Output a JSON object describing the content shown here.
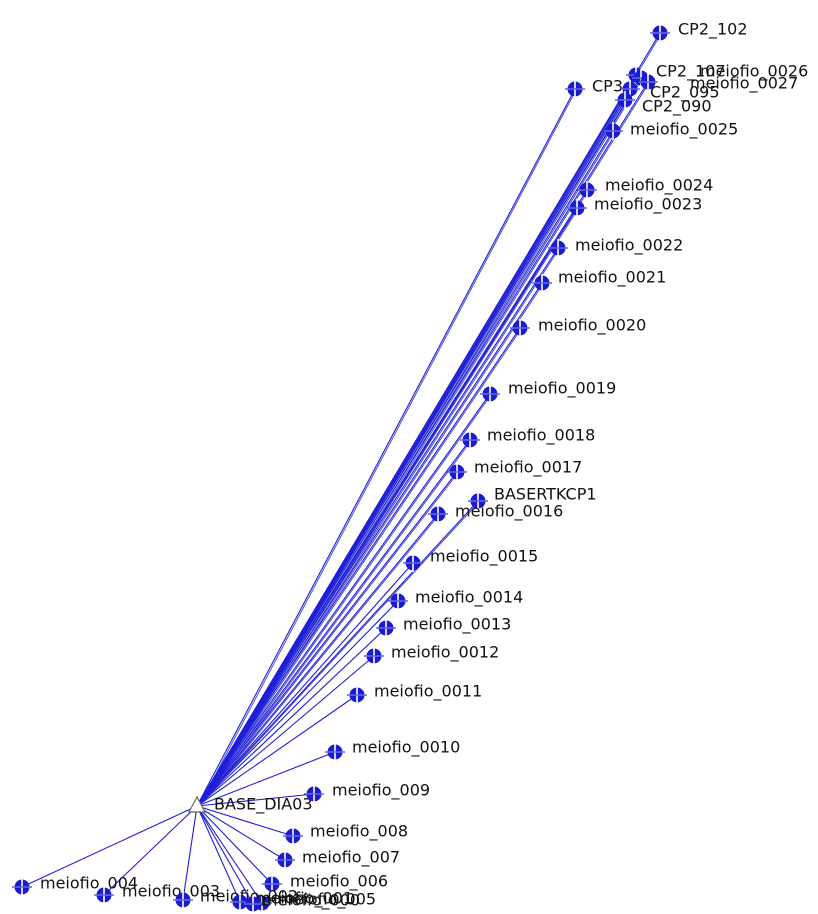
{
  "diagram": {
    "base": {
      "label": "BASE_DIA03"
    },
    "colors": {
      "line": "#1f1fd6",
      "marker": "#1a1ad0",
      "text": "#111111"
    },
    "marker_icon": "survey-point-marker",
    "base_icon": "base-station-triangle",
    "points": [
      {
        "id": "cp2_102",
        "label": "CP2_102"
      },
      {
        "id": "cp2_107",
        "label": "CP2_107"
      },
      {
        "id": "meiofio_0026",
        "label": "meiofio_0026"
      },
      {
        "id": "meiofio_0027",
        "label": "meiofio_0027"
      },
      {
        "id": "cp3",
        "label": "CP3"
      },
      {
        "id": "cp2_095",
        "label": "CP2_095"
      },
      {
        "id": "cp2_090",
        "label": "CP2_090"
      },
      {
        "id": "meiofio_0025",
        "label": "meiofio_0025"
      },
      {
        "id": "meiofio_0024",
        "label": "meiofio_0024"
      },
      {
        "id": "meiofio_0023",
        "label": "meiofio_0023"
      },
      {
        "id": "meiofio_0022",
        "label": "meiofio_0022"
      },
      {
        "id": "meiofio_0021",
        "label": "meiofio_0021"
      },
      {
        "id": "meiofio_0020",
        "label": "meiofio_0020"
      },
      {
        "id": "meiofio_0019",
        "label": "meiofio_0019"
      },
      {
        "id": "meiofio_0018",
        "label": "meiofio_0018"
      },
      {
        "id": "meiofio_0017",
        "label": "meiofio_0017"
      },
      {
        "id": "basertkcp1",
        "label": "BASERTKCP1"
      },
      {
        "id": "meiofio_0016",
        "label": "meiofio_0016"
      },
      {
        "id": "meiofio_0015",
        "label": "meiofio_0015"
      },
      {
        "id": "meiofio_0014",
        "label": "meiofio_0014"
      },
      {
        "id": "meiofio_0013",
        "label": "meiofio_0013"
      },
      {
        "id": "meiofio_0012",
        "label": "meiofio_0012"
      },
      {
        "id": "meiofio_0011",
        "label": "meiofio_0011"
      },
      {
        "id": "meiofio_0010",
        "label": "meiofio_0010"
      },
      {
        "id": "meiofio_009",
        "label": "meiofio_009"
      },
      {
        "id": "meiofio_008",
        "label": "meiofio_008"
      },
      {
        "id": "meiofio_007",
        "label": "meiofio_007"
      },
      {
        "id": "meiofio_006",
        "label": "meiofio_006"
      },
      {
        "id": "meiofio_005",
        "label": "meiofio_005"
      },
      {
        "id": "meiofio_004",
        "label": "meiofio_004"
      },
      {
        "id": "meiofio_003",
        "label": "meiofio_003"
      },
      {
        "id": "meiofio_002",
        "label": "meiofio_002"
      },
      {
        "id": "meiofio_001",
        "label": "meiofio_001"
      },
      {
        "id": "meiofio_000",
        "label": "meiofio_000"
      }
    ]
  }
}
